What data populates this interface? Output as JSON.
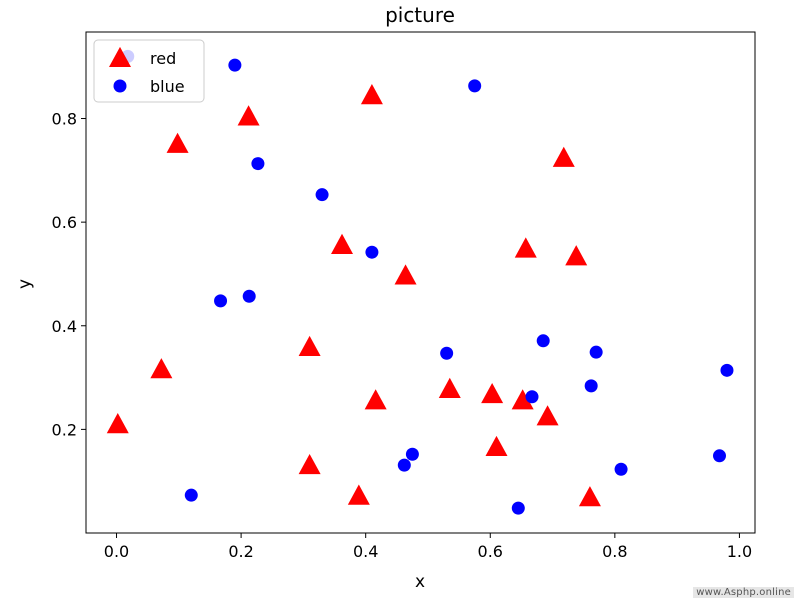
{
  "chart_data": {
    "type": "scatter",
    "title": "picture",
    "xlabel": "x",
    "ylabel": "y",
    "xlim": [
      -0.049,
      1.025
    ],
    "ylim": [
      0.0,
      0.967
    ],
    "xticks": [
      0.0,
      0.2,
      0.4,
      0.6,
      0.8,
      1.0
    ],
    "xtick_labels": [
      "0.0",
      "0.2",
      "0.4",
      "0.6",
      "0.8",
      "1.0"
    ],
    "yticks": [
      0.2,
      0.4,
      0.6,
      0.8
    ],
    "ytick_labels": [
      "0.2",
      "0.4",
      "0.6",
      "0.8"
    ],
    "grid": false,
    "legend_position": "top-left",
    "series": [
      {
        "name": "red",
        "color": "#ff0000",
        "marker": "triangle",
        "points": [
          [
            0.002,
            0.21
          ],
          [
            0.072,
            0.316
          ],
          [
            0.098,
            0.751
          ],
          [
            0.212,
            0.804
          ],
          [
            0.31,
            0.359
          ],
          [
            0.31,
            0.131
          ],
          [
            0.362,
            0.556
          ],
          [
            0.389,
            0.072
          ],
          [
            0.41,
            0.845
          ],
          [
            0.416,
            0.256
          ],
          [
            0.464,
            0.497
          ],
          [
            0.535,
            0.278
          ],
          [
            0.603,
            0.268
          ],
          [
            0.61,
            0.166
          ],
          [
            0.652,
            0.256
          ],
          [
            0.657,
            0.549
          ],
          [
            0.692,
            0.225
          ],
          [
            0.718,
            0.724
          ],
          [
            0.738,
            0.534
          ],
          [
            0.76,
            0.069
          ]
        ]
      },
      {
        "name": "blue",
        "color": "#0000ff",
        "marker": "circle",
        "points": [
          [
            0.018,
            0.92
          ],
          [
            0.12,
            0.073
          ],
          [
            0.167,
            0.448
          ],
          [
            0.19,
            0.903
          ],
          [
            0.213,
            0.457
          ],
          [
            0.227,
            0.713
          ],
          [
            0.33,
            0.653
          ],
          [
            0.41,
            0.542
          ],
          [
            0.462,
            0.131
          ],
          [
            0.475,
            0.152
          ],
          [
            0.53,
            0.347
          ],
          [
            0.575,
            0.863
          ],
          [
            0.645,
            0.048
          ],
          [
            0.667,
            0.263
          ],
          [
            0.685,
            0.371
          ],
          [
            0.762,
            0.284
          ],
          [
            0.77,
            0.349
          ],
          [
            0.81,
            0.123
          ],
          [
            0.968,
            0.149
          ],
          [
            0.98,
            0.314
          ]
        ]
      }
    ]
  },
  "watermark": "www.Asphp.online"
}
